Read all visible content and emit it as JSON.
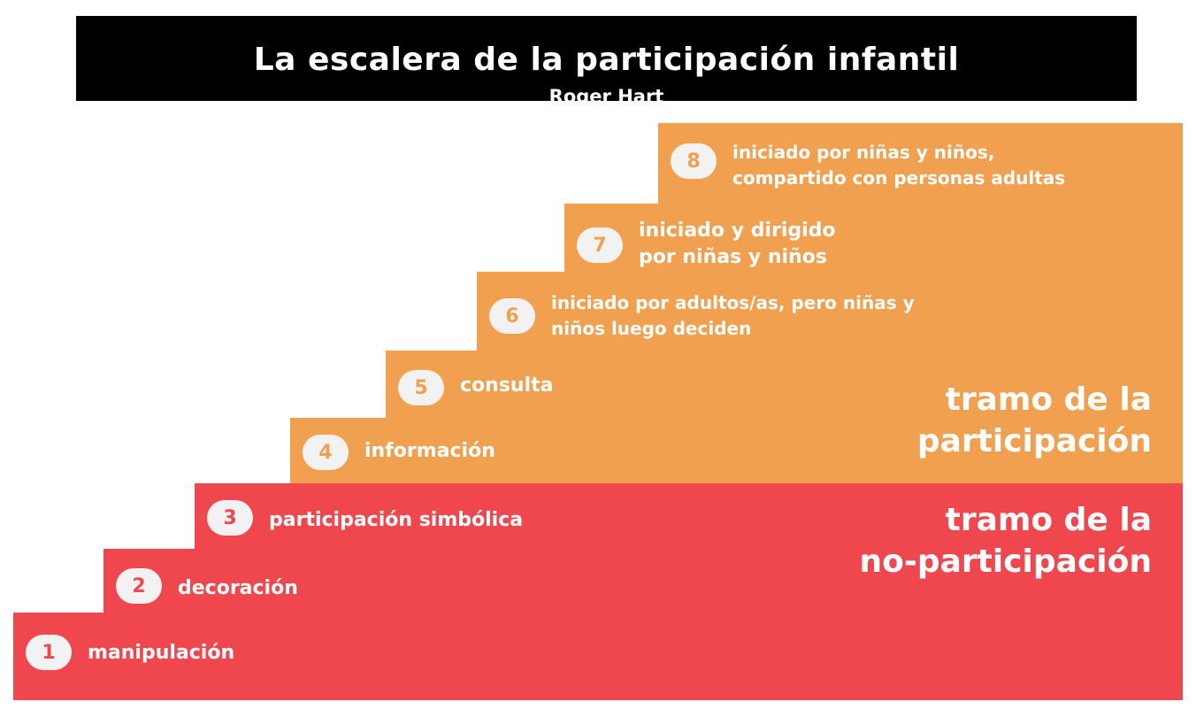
{
  "header": {
    "title": "La escalera de la participación infantil",
    "subtitle": "Roger Hart"
  },
  "colors": {
    "participation": "#f0a04e",
    "non_participation": "#f0474f",
    "badge_bg": "#f2f2f2",
    "banner_bg": "#000000",
    "text": "#ffffff"
  },
  "sections": {
    "participation": {
      "line1": "tramo de la",
      "line2": "participación"
    },
    "non_participation": {
      "line1": "tramo de la",
      "line2": "no-participación"
    }
  },
  "steps": [
    {
      "number": "1",
      "line1": "manipulación",
      "line2": ""
    },
    {
      "number": "2",
      "line1": "decoración",
      "line2": ""
    },
    {
      "number": "3",
      "line1": "participación simbólica",
      "line2": ""
    },
    {
      "number": "4",
      "line1": "información",
      "line2": ""
    },
    {
      "number": "5",
      "line1": "consulta",
      "line2": ""
    },
    {
      "number": "6",
      "line1": "iniciado por adultos/as, pero niñas y",
      "line2": "niños luego deciden"
    },
    {
      "number": "7",
      "line1": "iniciado y dirigido",
      "line2": "por niñas y niños"
    },
    {
      "number": "8",
      "line1": "iniciado por niñas y niños,",
      "line2": "compartido con personas adultas"
    }
  ]
}
